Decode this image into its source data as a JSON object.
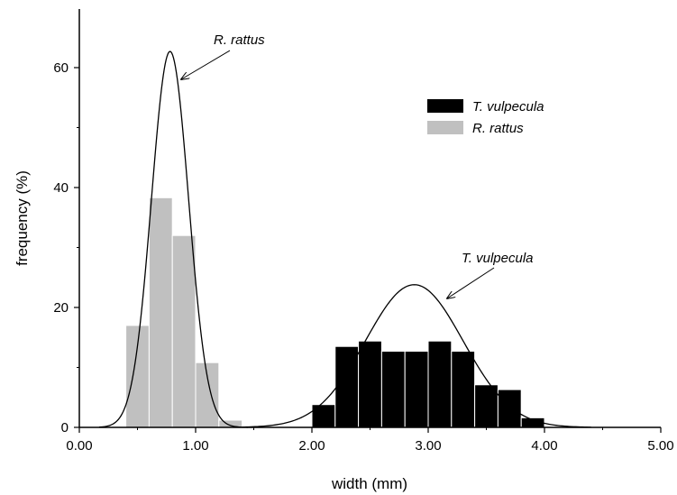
{
  "chart_data": {
    "type": "bar",
    "title": "",
    "xlabel": "width (mm)",
    "ylabel": "frequency (%)",
    "xlim": [
      0.0,
      5.0
    ],
    "ylim": [
      0,
      70
    ],
    "grid": false,
    "legend_position": "top-right",
    "x_ticks": [
      {
        "value": 0,
        "label": "0.00"
      },
      {
        "value": 1,
        "label": "1.00"
      },
      {
        "value": 2,
        "label": "2.00"
      },
      {
        "value": 3,
        "label": "3.00"
      },
      {
        "value": 4,
        "label": "4.00"
      },
      {
        "value": 5,
        "label": "5.00"
      }
    ],
    "y_ticks": [
      {
        "value": 0,
        "label": "0"
      },
      {
        "value": 20,
        "label": "20"
      },
      {
        "value": 40,
        "label": "40"
      },
      {
        "value": 60,
        "label": "60"
      }
    ],
    "bin_width": 0.2,
    "series": [
      {
        "name": "T. vulpecula",
        "color": "#000000",
        "bins": [
          {
            "start": 2.0,
            "value": 3.8
          },
          {
            "start": 2.2,
            "value": 13.5
          },
          {
            "start": 2.4,
            "value": 14.4
          },
          {
            "start": 2.6,
            "value": 12.7
          },
          {
            "start": 2.8,
            "value": 12.7
          },
          {
            "start": 3.0,
            "value": 14.4
          },
          {
            "start": 3.2,
            "value": 12.7
          },
          {
            "start": 3.4,
            "value": 7.1
          },
          {
            "start": 3.6,
            "value": 6.3
          },
          {
            "start": 3.8,
            "value": 1.6
          }
        ],
        "fit": {
          "mean": 2.88,
          "sd": 0.42,
          "peak": 23.8,
          "range": [
            1.4,
            4.4
          ]
        }
      },
      {
        "name": "R. rattus",
        "color": "#c0c0c0",
        "bins": [
          {
            "start": 0.4,
            "value": 17.0
          },
          {
            "start": 0.6,
            "value": 38.3
          },
          {
            "start": 0.8,
            "value": 32.0
          },
          {
            "start": 1.0,
            "value": 10.8
          },
          {
            "start": 1.2,
            "value": 1.2
          }
        ],
        "fit": {
          "mean": 0.78,
          "sd": 0.16,
          "peak": 62.7,
          "range": [
            0.17,
            1.45
          ]
        }
      }
    ],
    "annotations": [
      {
        "text": "R. rattus",
        "points_to": {
          "x": 0.85,
          "y": 58
        }
      },
      {
        "text": "T. vulpecula",
        "points_to": {
          "x": 3.1,
          "y": 21.5
        }
      }
    ]
  }
}
